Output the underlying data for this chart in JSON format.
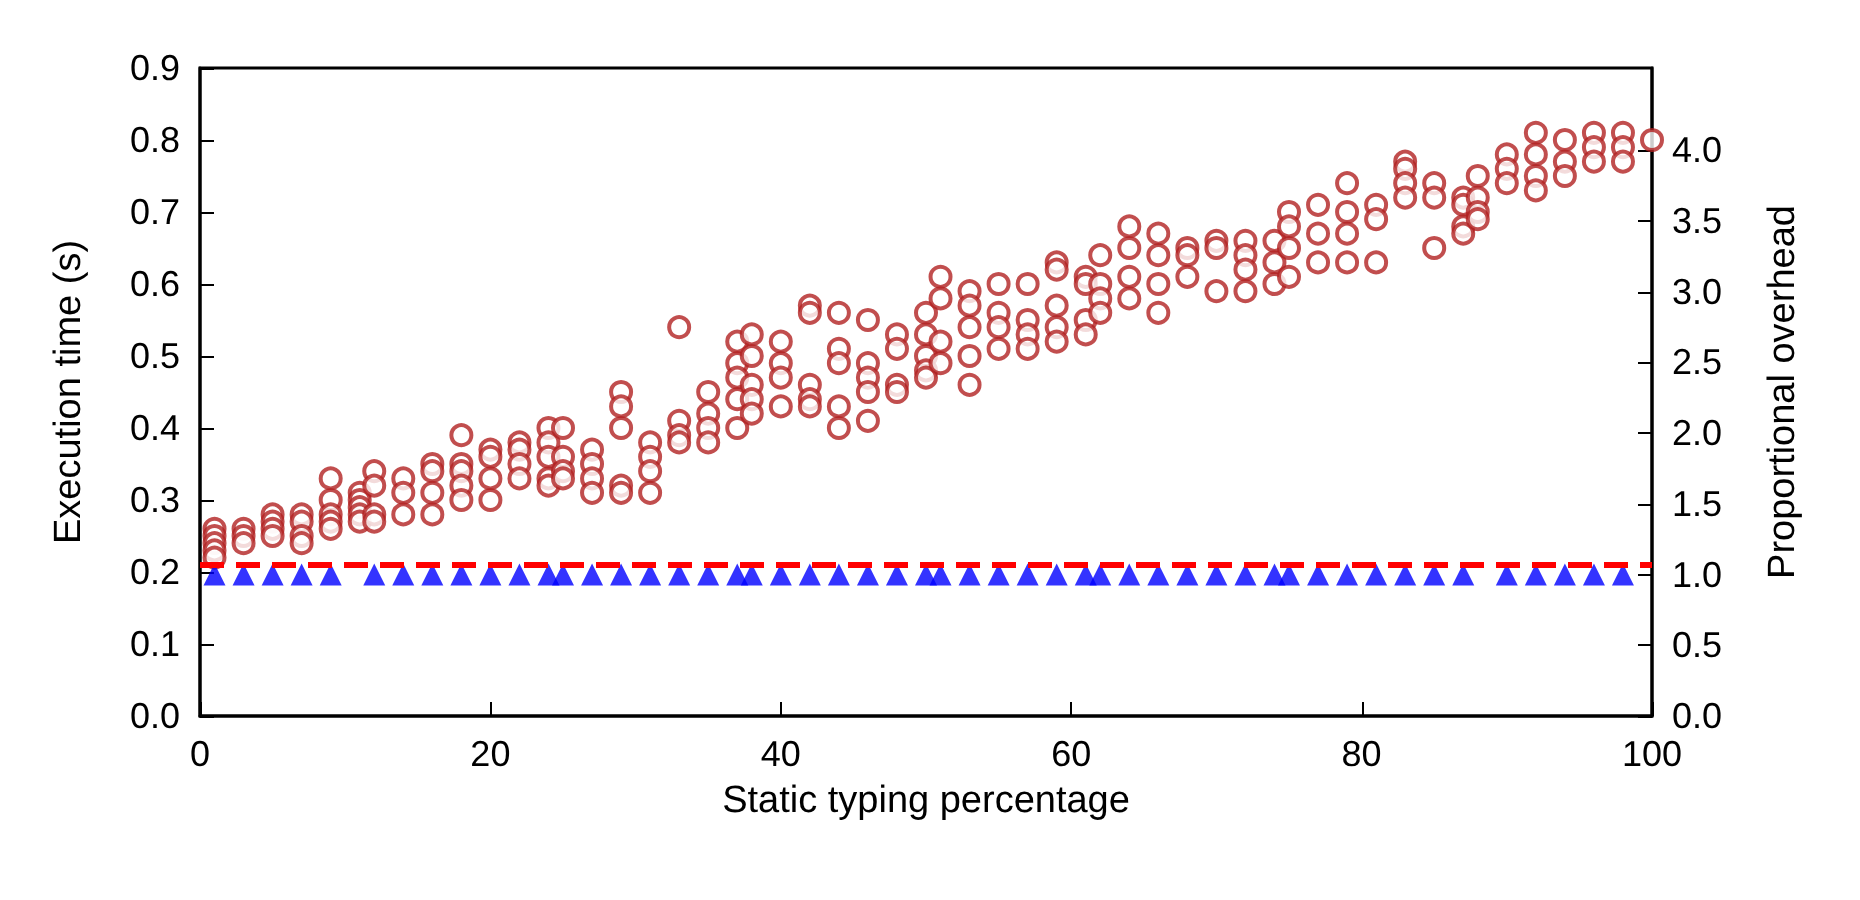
{
  "chart_data": {
    "type": "scatter",
    "xlabel": "Static typing percentage",
    "ylabel": "Execution time (s)",
    "y2label": "Proportional overhead",
    "xlim": [
      0,
      100
    ],
    "xticks": [
      0,
      20,
      40,
      60,
      80,
      100
    ],
    "ylim": [
      0,
      0.9
    ],
    "yticks": [
      {
        "value": 0,
        "label": "0.0"
      },
      0.1,
      0.2,
      0.3,
      0.4,
      0.5,
      0.6,
      0.7,
      0.8,
      0.9
    ],
    "y2lim": [
      0,
      4.58
    ],
    "y2ticks": [
      {
        "value": 0,
        "label": "0.0"
      },
      0.5,
      {
        "value": 1,
        "label": "1.0"
      },
      1.5,
      {
        "value": 2,
        "label": "2.0"
      },
      2.5,
      {
        "value": 3,
        "label": "3.0"
      },
      3.5,
      {
        "value": 4,
        "label": "4.0"
      }
    ],
    "grid": false,
    "ref_lines": [
      {
        "axis": "y",
        "value": 0.21,
        "label": null,
        "color": "#ff0000",
        "line_style": "dashed"
      }
    ],
    "series": [
      {
        "marker": "circle",
        "color": "#b22222",
        "x": [
          1,
          1,
          1,
          1,
          1,
          3,
          3,
          3,
          5,
          5,
          5,
          5,
          7,
          7,
          7,
          7,
          9,
          9,
          9,
          9,
          9,
          11,
          11,
          11,
          11,
          11,
          12,
          12,
          12,
          12,
          14,
          14,
          14,
          16,
          16,
          16,
          16,
          18,
          18,
          18,
          18,
          18,
          20,
          20,
          20,
          20,
          22,
          22,
          22,
          22,
          24,
          24,
          24,
          24,
          24,
          25,
          25,
          25,
          25,
          27,
          27,
          27,
          27,
          29,
          29,
          29,
          29,
          29,
          31,
          31,
          31,
          31,
          33,
          33,
          33,
          33,
          35,
          35,
          35,
          35,
          37,
          37,
          37,
          37,
          37,
          38,
          38,
          38,
          38,
          38,
          40,
          40,
          40,
          40,
          42,
          42,
          42,
          42,
          42,
          44,
          44,
          44,
          44,
          44,
          46,
          46,
          46,
          46,
          46,
          48,
          48,
          48,
          48,
          50,
          50,
          50,
          50,
          50,
          51,
          51,
          51,
          51,
          53,
          53,
          53,
          53,
          53,
          55,
          55,
          55,
          55,
          57,
          57,
          57,
          57,
          59,
          59,
          59,
          59,
          59,
          61,
          61,
          61,
          61,
          62,
          62,
          62,
          62,
          64,
          64,
          64,
          64,
          66,
          66,
          66,
          66,
          68,
          68,
          68,
          70,
          70,
          70,
          72,
          72,
          72,
          72,
          74,
          74,
          74,
          75,
          75,
          75,
          75,
          77,
          77,
          77,
          79,
          79,
          79,
          79,
          81,
          81,
          81,
          83,
          83,
          83,
          83,
          85,
          85,
          85,
          87,
          87,
          87,
          87,
          88,
          88,
          88,
          88,
          90,
          90,
          90,
          92,
          92,
          92,
          92,
          94,
          94,
          94,
          96,
          96,
          96,
          98,
          98,
          98,
          100
        ],
        "values": [
          0.26,
          0.25,
          0.24,
          0.23,
          0.22,
          0.26,
          0.25,
          0.24,
          0.28,
          0.27,
          0.26,
          0.25,
          0.28,
          0.27,
          0.25,
          0.24,
          0.33,
          0.3,
          0.28,
          0.27,
          0.26,
          0.31,
          0.3,
          0.29,
          0.28,
          0.27,
          0.34,
          0.32,
          0.28,
          0.27,
          0.33,
          0.31,
          0.28,
          0.35,
          0.34,
          0.31,
          0.28,
          0.39,
          0.35,
          0.34,
          0.32,
          0.3,
          0.37,
          0.36,
          0.33,
          0.3,
          0.38,
          0.37,
          0.35,
          0.33,
          0.4,
          0.38,
          0.36,
          0.33,
          0.32,
          0.4,
          0.36,
          0.34,
          0.33,
          0.37,
          0.35,
          0.33,
          0.31,
          0.45,
          0.43,
          0.4,
          0.32,
          0.31,
          0.38,
          0.36,
          0.34,
          0.31,
          0.54,
          0.41,
          0.39,
          0.38,
          0.45,
          0.42,
          0.4,
          0.38,
          0.52,
          0.49,
          0.47,
          0.44,
          0.4,
          0.53,
          0.5,
          0.46,
          0.44,
          0.42,
          0.52,
          0.49,
          0.47,
          0.43,
          0.57,
          0.56,
          0.46,
          0.44,
          0.43,
          0.56,
          0.51,
          0.49,
          0.43,
          0.4,
          0.55,
          0.49,
          0.47,
          0.45,
          0.41,
          0.53,
          0.51,
          0.46,
          0.45,
          0.56,
          0.53,
          0.5,
          0.48,
          0.47,
          0.61,
          0.58,
          0.52,
          0.49,
          0.59,
          0.57,
          0.54,
          0.5,
          0.46,
          0.6,
          0.56,
          0.54,
          0.51,
          0.6,
          0.55,
          0.53,
          0.51,
          0.63,
          0.62,
          0.57,
          0.54,
          0.52,
          0.61,
          0.6,
          0.55,
          0.53,
          0.64,
          0.6,
          0.58,
          0.56,
          0.68,
          0.65,
          0.61,
          0.58,
          0.67,
          0.64,
          0.6,
          0.56,
          0.65,
          0.64,
          0.61,
          0.66,
          0.65,
          0.59,
          0.66,
          0.64,
          0.62,
          0.59,
          0.66,
          0.63,
          0.6,
          0.7,
          0.68,
          0.65,
          0.61,
          0.71,
          0.67,
          0.63,
          0.74,
          0.7,
          0.67,
          0.63,
          0.71,
          0.69,
          0.63,
          0.77,
          0.76,
          0.74,
          0.72,
          0.74,
          0.72,
          0.65,
          0.72,
          0.71,
          0.68,
          0.67,
          0.75,
          0.72,
          0.7,
          0.69,
          0.78,
          0.76,
          0.74,
          0.81,
          0.78,
          0.75,
          0.73,
          0.8,
          0.77,
          0.75,
          0.81,
          0.79,
          0.77,
          0.81,
          0.79,
          0.77,
          0.8
        ]
      },
      {
        "marker": "triangle",
        "color": "#0000ff",
        "axis": "y2",
        "x": [
          1,
          3,
          5,
          7,
          9,
          12,
          14,
          16,
          18,
          20,
          22,
          24,
          25,
          27,
          29,
          31,
          33,
          35,
          37,
          38,
          40,
          42,
          44,
          46,
          48,
          50,
          51,
          53,
          55,
          57,
          59,
          61,
          62,
          64,
          66,
          68,
          70,
          72,
          74,
          75,
          77,
          79,
          81,
          83,
          85,
          87,
          90,
          92,
          94,
          96,
          98
        ],
        "values": [
          1,
          1,
          1,
          1,
          1,
          1,
          1,
          1,
          1,
          1,
          1,
          1,
          1,
          1,
          1,
          1,
          1,
          1,
          1,
          1,
          1,
          1,
          1,
          1,
          1,
          1,
          1,
          1,
          1,
          1,
          1,
          1,
          1,
          1,
          1,
          1,
          1,
          1,
          1,
          1,
          1,
          1,
          1,
          1,
          1,
          1,
          1,
          1,
          1,
          1,
          1
        ]
      }
    ]
  }
}
